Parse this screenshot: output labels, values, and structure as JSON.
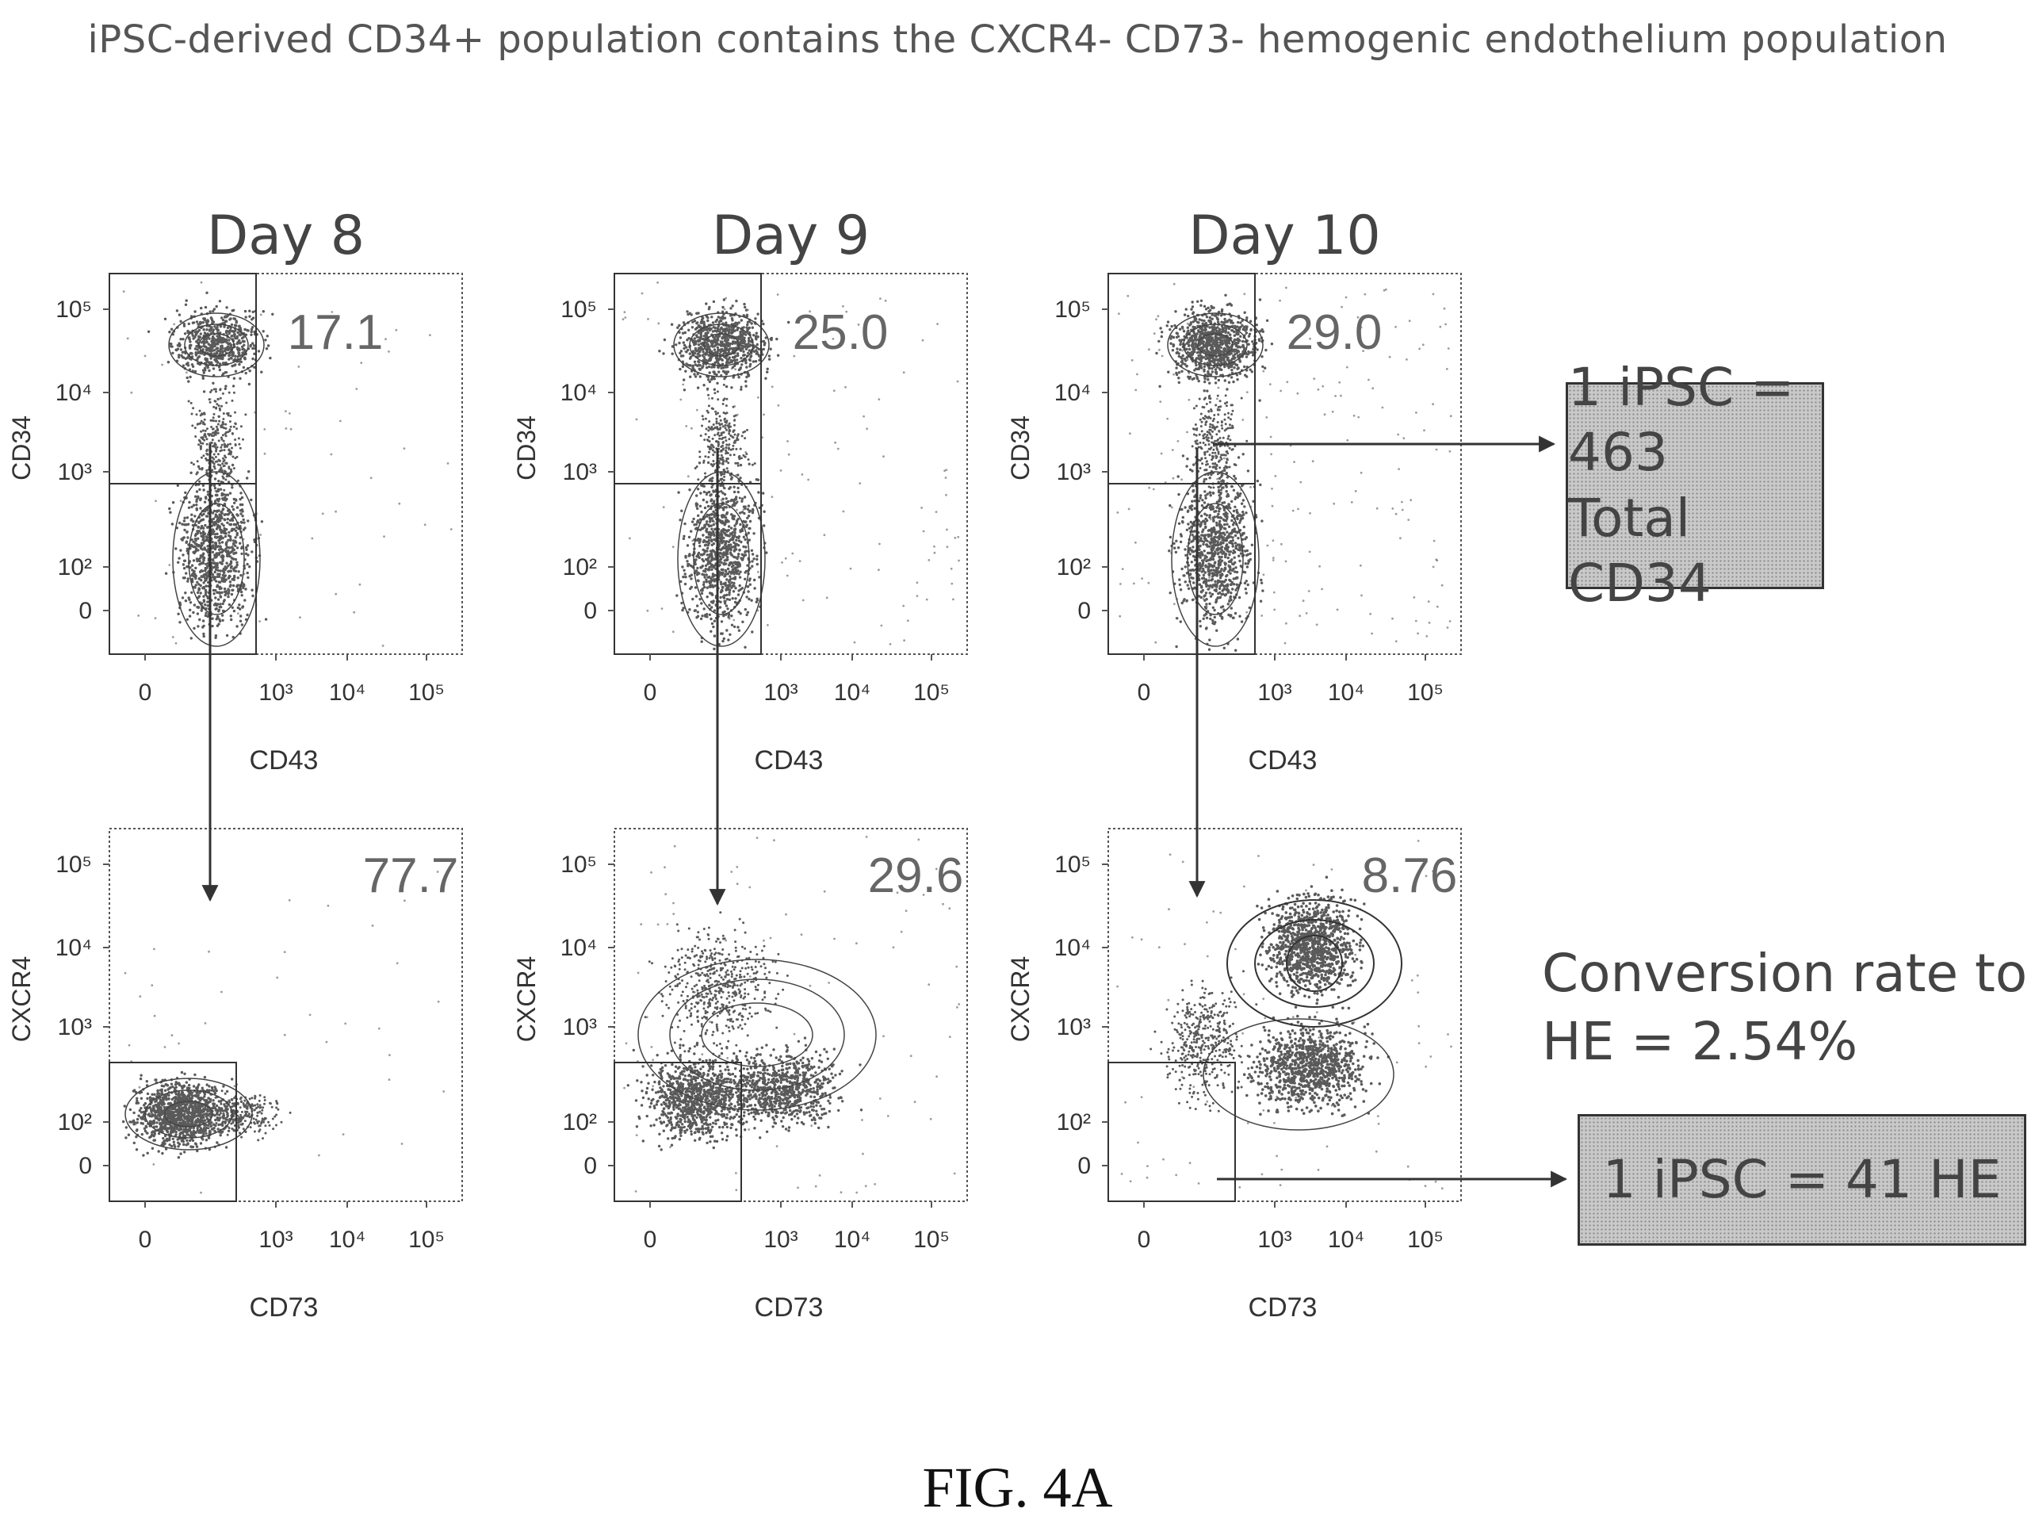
{
  "title": "iPSC-derived CD34+ population contains the CXCR4- CD73- hemogenic endothelium population",
  "caption": "FIG. 4A",
  "colors": {
    "ink": "#333333",
    "dots": "#6b6b6b",
    "box_fill": "#c9c9c9"
  },
  "chart_data": [
    {
      "type": "scatter",
      "day": "Day 8",
      "xlabel": "CD43",
      "ylabel": "CD34",
      "x_ticks": [
        "0",
        "10³",
        "10⁴",
        "10⁵"
      ],
      "y_ticks": [
        "10⁵",
        "10⁴",
        "10³",
        "10²",
        "0"
      ],
      "gate_label": "17.1",
      "gate": "CD34+ CD43-"
    },
    {
      "type": "scatter",
      "day": "Day 9",
      "xlabel": "CD43",
      "ylabel": "CD34",
      "x_ticks": [
        "0",
        "10³",
        "10⁴",
        "10⁵"
      ],
      "y_ticks": [
        "10⁵",
        "10⁴",
        "10³",
        "10²",
        "0"
      ],
      "gate_label": "25.0",
      "gate": "CD34+ CD43-"
    },
    {
      "type": "scatter",
      "day": "Day 10",
      "xlabel": "CD43",
      "ylabel": "CD34",
      "x_ticks": [
        "0",
        "10³",
        "10⁴",
        "10⁵"
      ],
      "y_ticks": [
        "10⁵",
        "10⁴",
        "10³",
        "10²",
        "0"
      ],
      "gate_label": "29.0",
      "gate": "CD34+ CD43-"
    },
    {
      "type": "scatter",
      "xlabel": "CD73",
      "ylabel": "CXCR4",
      "x_ticks": [
        "0",
        "10³",
        "10⁴",
        "10⁵"
      ],
      "y_ticks": [
        "10⁵",
        "10⁴",
        "10³",
        "10²",
        "0"
      ],
      "gate_label": "77.7",
      "gate": "CXCR4- CD73-"
    },
    {
      "type": "scatter",
      "xlabel": "CD73",
      "ylabel": "CXCR4",
      "x_ticks": [
        "0",
        "10³",
        "10⁴",
        "10⁵"
      ],
      "y_ticks": [
        "10⁵",
        "10⁴",
        "10³",
        "10²",
        "0"
      ],
      "gate_label": "29.6",
      "gate": "CXCR4- CD73-"
    },
    {
      "type": "scatter",
      "xlabel": "CD73",
      "ylabel": "CXCR4",
      "x_ticks": [
        "0",
        "10³",
        "10⁴",
        "10⁵"
      ],
      "y_ticks": [
        "10⁵",
        "10⁴",
        "10³",
        "10²",
        "0"
      ],
      "gate_label": "8.76",
      "gate": "CXCR4- CD73-"
    }
  ],
  "annotations": {
    "box_cd34": {
      "line1": "1 iPSC = 463",
      "line2": "Total CD34"
    },
    "conversion": {
      "line1": "Conversion rate to",
      "line2": "HE = 2.54%"
    },
    "box_he": {
      "line1": "1 iPSC = 41 HE"
    }
  }
}
